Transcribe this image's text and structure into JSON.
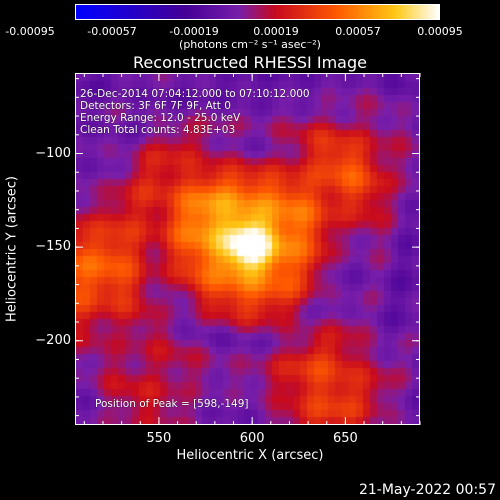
{
  "chart_data": {
    "type": "heatmap",
    "title": "Reconstructed RHESSI Image",
    "xlabel": "Heliocentric X (arcsec)",
    "ylabel": "Heliocentric Y (arcsec)",
    "xlim": [
      505,
      690
    ],
    "ylim": [
      -245,
      -57
    ],
    "x_ticks": [
      550,
      600,
      650
    ],
    "y_ticks": [
      -100,
      -150,
      -200
    ],
    "colorbar": {
      "ticks": [
        "-0.00095",
        "-0.00057",
        "-0.00019",
        "0.00019",
        "0.00057",
        "0.00095"
      ],
      "units": "(photons cm⁻² s⁻¹ asec⁻²)",
      "range": [
        -0.00095,
        0.00095
      ]
    },
    "annotations": {
      "time": "26-Dec-2014 07:04:12.000 to 07:10:12.000",
      "detectors": "Detectors: 3F 6F 7F 9F, Att 0",
      "energy": "Energy Range: 12.0 - 25.0 keV",
      "clean": "Clean     Total counts: 4.83E+03",
      "peak": "Position of Peak = [598,-149]"
    },
    "peak": {
      "x": 598,
      "y": -149
    },
    "sources": [
      {
        "x": 598,
        "y": -149,
        "amp": 1.0
      },
      {
        "x": 512,
        "y": -162,
        "amp": 0.55
      },
      {
        "x": 560,
        "y": -118,
        "amp": 0.35
      },
      {
        "x": 648,
        "y": -110,
        "amp": 0.45
      },
      {
        "x": 640,
        "y": -225,
        "amp": 0.45
      },
      {
        "x": 545,
        "y": -225,
        "amp": 0.25
      }
    ],
    "timestamp": "21-May-2022 00:57"
  }
}
